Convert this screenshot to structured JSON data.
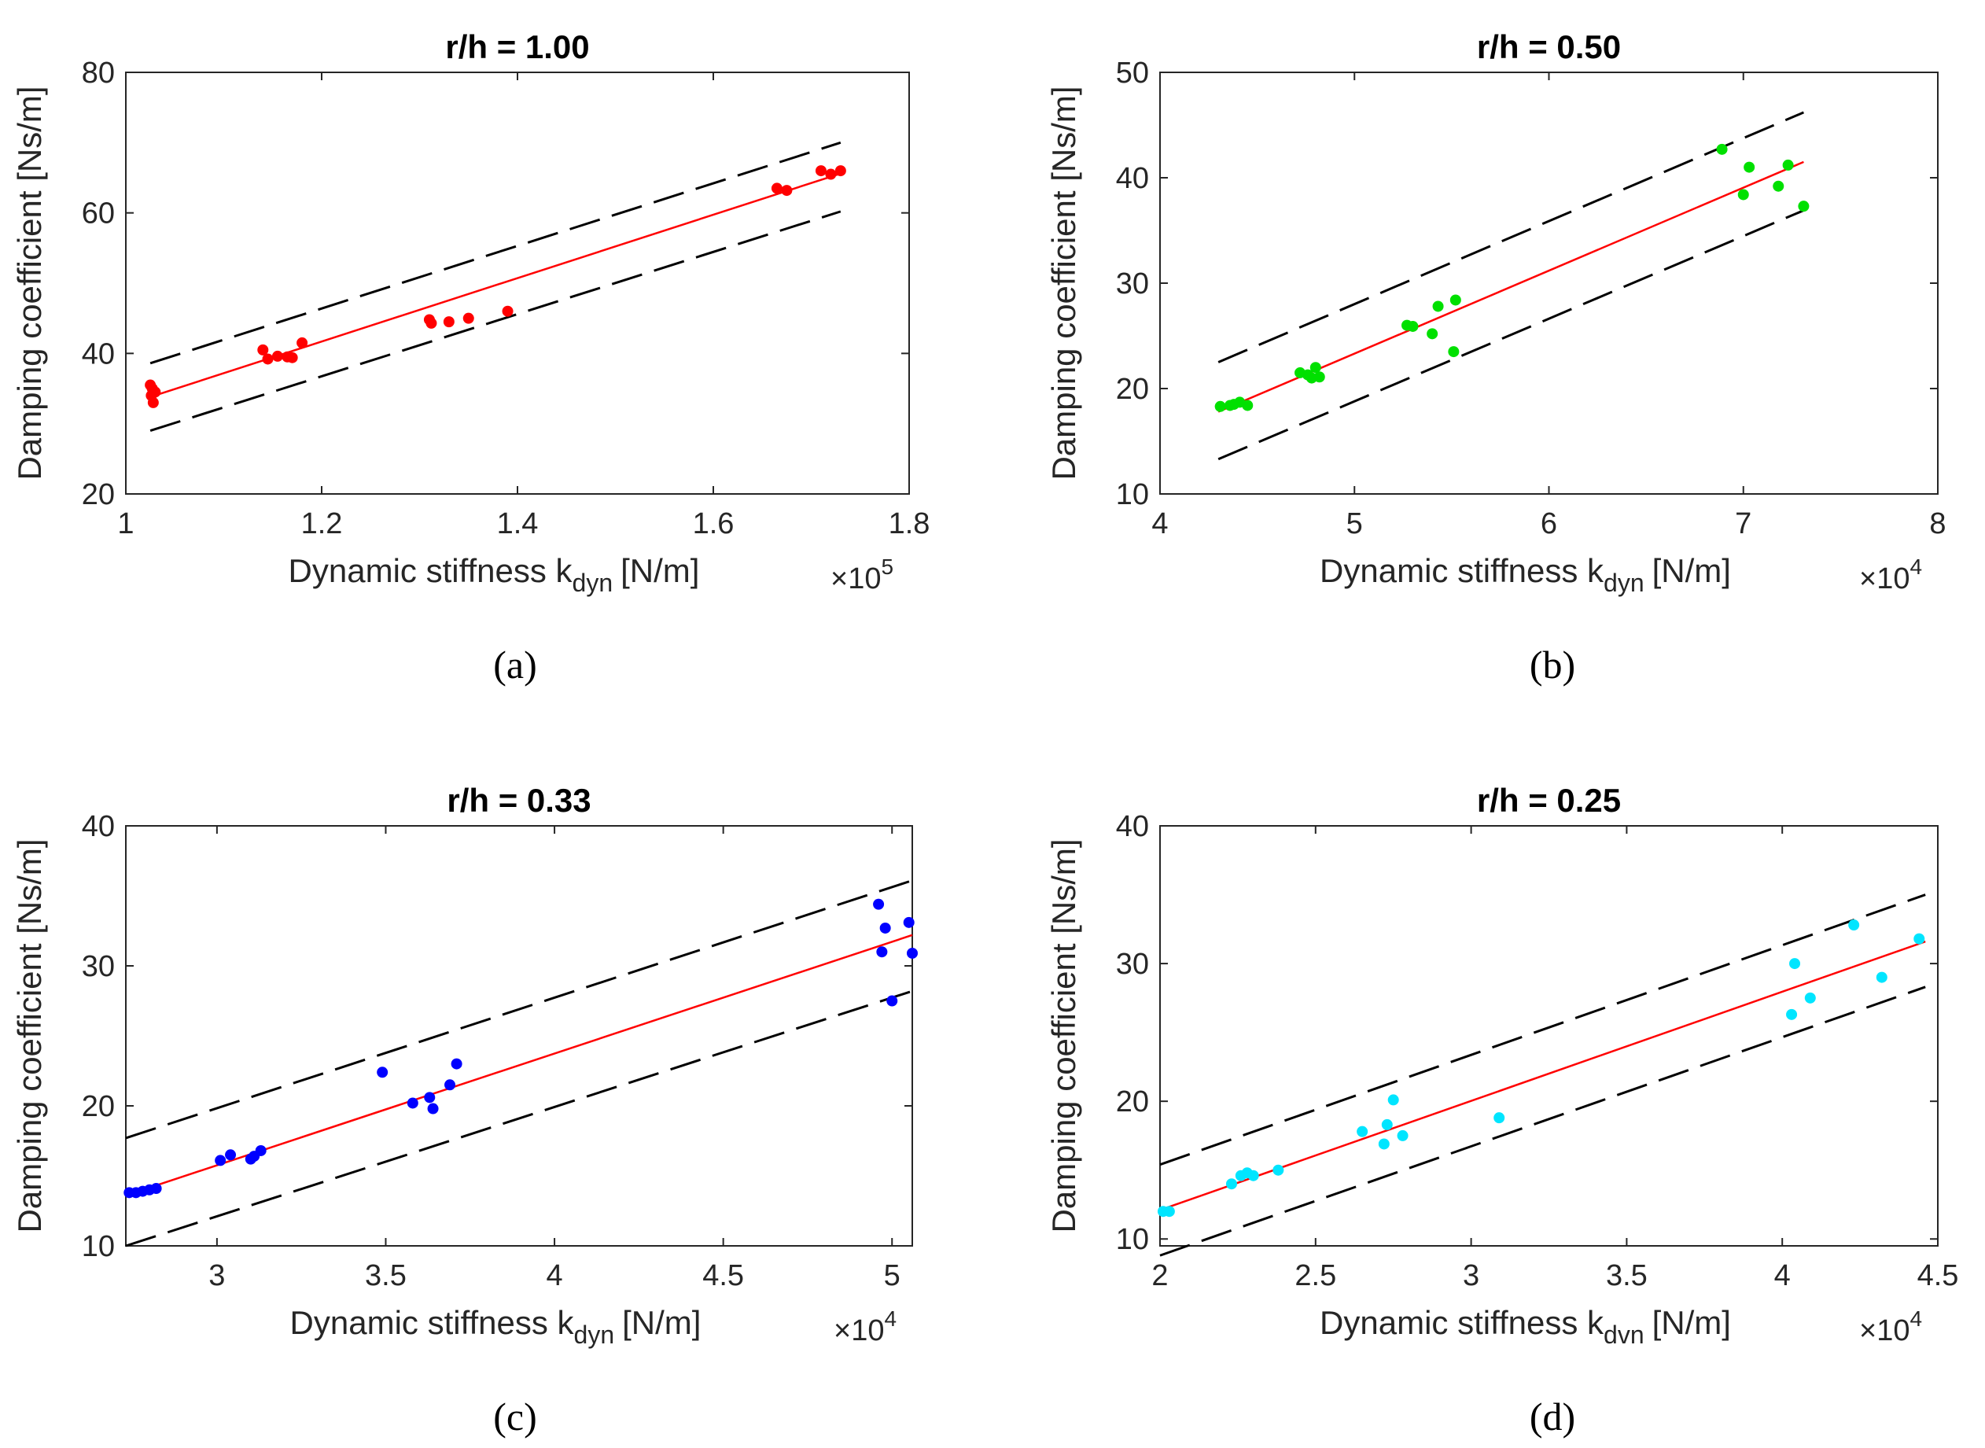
{
  "chart_data": [
    {
      "type": "scatter",
      "panel": "(a)",
      "title": "r/h = 1.00",
      "ylabel": "Damping coefficient [Ns/m]",
      "xlabel_main": "Dynamic stiffness k",
      "xlabel_sub": "dyn",
      "xlabel_unit": "[N/m]",
      "x_multiplier": "×10",
      "x_exponent": "5",
      "xlim": [
        1.0,
        1.8
      ],
      "ylim": [
        20,
        80
      ],
      "xticks": [
        1.0,
        1.2,
        1.4,
        1.6,
        1.8
      ],
      "xtick_labels": [
        "1",
        "1.2",
        "1.4",
        "1.6",
        "1.8"
      ],
      "yticks": [
        20,
        40,
        60,
        80
      ],
      "ytick_labels": [
        "20",
        "40",
        "60",
        "80"
      ],
      "color": "#ff0000",
      "x": [
        1.025,
        1.027,
        1.03,
        1.028,
        1.026,
        1.14,
        1.145,
        1.155,
        1.165,
        1.17,
        1.18,
        1.31,
        1.312,
        1.33,
        1.35,
        1.39,
        1.665,
        1.675,
        1.71,
        1.72,
        1.73
      ],
      "y": [
        35.5,
        35.0,
        34.5,
        33.0,
        34.0,
        40.5,
        39.2,
        39.6,
        39.5,
        39.4,
        41.5,
        44.8,
        44.3,
        44.5,
        45.0,
        46.0,
        63.5,
        63.2,
        66.0,
        65.5,
        66.0
      ],
      "fit": {
        "x": [
          1.025,
          1.73
        ],
        "y": [
          33.8,
          65.6
        ],
        "color": "#ff0000"
      },
      "bounds": [
        {
          "x": [
            1.025,
            1.73
          ],
          "y": [
            38.6,
            70.0
          ]
        },
        {
          "x": [
            1.025,
            1.73
          ],
          "y": [
            29.0,
            60.2
          ]
        }
      ],
      "caption": "(a)"
    },
    {
      "type": "scatter",
      "panel": "(b)",
      "title": "r/h = 0.50",
      "ylabel": "Damping coefficient [Ns/m]",
      "xlabel_main": "Dynamic stiffness k",
      "xlabel_sub": "dyn",
      "xlabel_unit": "[N/m]",
      "x_multiplier": "×10",
      "x_exponent": "4",
      "xlim": [
        4,
        8
      ],
      "ylim": [
        10,
        50
      ],
      "xticks": [
        4,
        5,
        6,
        7,
        8
      ],
      "xtick_labels": [
        "4",
        "5",
        "6",
        "7",
        "8"
      ],
      "yticks": [
        10,
        20,
        30,
        40,
        50
      ],
      "ytick_labels": [
        "10",
        "20",
        "30",
        "40",
        "50"
      ],
      "color": "#00e000",
      "x": [
        4.31,
        4.36,
        4.38,
        4.41,
        4.45,
        4.72,
        4.76,
        4.8,
        4.78,
        4.82,
        5.27,
        5.3,
        5.4,
        5.43,
        5.51,
        5.52,
        6.89,
        7.0,
        7.03,
        7.18,
        7.23,
        7.31
      ],
      "y": [
        18.3,
        18.4,
        18.5,
        18.7,
        18.4,
        21.5,
        21.3,
        22.0,
        21.0,
        21.1,
        26.0,
        25.9,
        25.2,
        27.8,
        23.5,
        28.4,
        42.7,
        38.4,
        41.0,
        39.2,
        41.2,
        37.3
      ],
      "fit": {
        "x": [
          4.3,
          7.31
        ],
        "y": [
          17.8,
          41.5
        ],
        "color": "#ff0000"
      },
      "bounds": [
        {
          "x": [
            4.3,
            7.31
          ],
          "y": [
            22.5,
            46.2
          ]
        },
        {
          "x": [
            4.3,
            7.31
          ],
          "y": [
            13.3,
            36.9
          ]
        }
      ],
      "caption": "(b)"
    },
    {
      "type": "scatter",
      "panel": "(c)",
      "title": "r/h = 0.33",
      "ylabel": "Damping coefficient [Ns/m]",
      "xlabel_main": "Dynamic stiffness k",
      "xlabel_sub": "dyn",
      "xlabel_unit": "[N/m]",
      "x_multiplier": "×10",
      "x_exponent": "4",
      "xlim": [
        2.73,
        5.06
      ],
      "ylim": [
        10,
        40
      ],
      "xticks": [
        3,
        3.5,
        4,
        4.5,
        5
      ],
      "xtick_labels": [
        "3",
        "3.5",
        "4",
        "4.5",
        "5"
      ],
      "yticks": [
        10,
        20,
        30,
        40
      ],
      "ytick_labels": [
        "10",
        "20",
        "30",
        "40"
      ],
      "color": "#0000ff",
      "x": [
        2.74,
        2.76,
        2.78,
        2.8,
        2.82,
        3.01,
        3.04,
        3.1,
        3.11,
        3.13,
        3.49,
        3.58,
        3.63,
        3.64,
        3.69,
        3.71,
        4.96,
        4.97,
        4.98,
        5.0,
        5.05,
        5.06
      ],
      "y": [
        13.8,
        13.8,
        13.9,
        14.0,
        14.1,
        16.1,
        16.5,
        16.2,
        16.4,
        16.8,
        22.4,
        20.2,
        20.6,
        19.8,
        21.5,
        23.0,
        34.4,
        31.0,
        32.7,
        27.5,
        33.1,
        30.9
      ],
      "fit": {
        "x": [
          2.73,
          5.06
        ],
        "y": [
          13.6,
          32.2
        ],
        "color": "#ff0000"
      },
      "bounds": [
        {
          "x": [
            2.73,
            5.06
          ],
          "y": [
            17.7,
            36.1
          ]
        },
        {
          "x": [
            2.73,
            5.06
          ],
          "y": [
            10.0,
            28.2
          ]
        }
      ],
      "caption": "(c)"
    },
    {
      "type": "scatter",
      "panel": "(d)",
      "title": "r/h = 0.25",
      "ylabel": "Damping coefficient [Ns/m]",
      "xlabel_main": "Dynamic stiffness k",
      "xlabel_sub": "dvn",
      "xlabel_unit": "[N/m]",
      "x_multiplier": "×10",
      "x_exponent": "4",
      "xlim": [
        2,
        4.5
      ],
      "ylim": [
        9.5,
        40
      ],
      "xticks": [
        2,
        2.5,
        3,
        3.5,
        4,
        4.5
      ],
      "xtick_labels": [
        "2",
        "2.5",
        "3",
        "3.5",
        "4",
        "4.5"
      ],
      "yticks": [
        10,
        20,
        30,
        40
      ],
      "ytick_labels": [
        "10",
        "20",
        "30",
        "40"
      ],
      "color": "#00e5ff",
      "x": [
        2.01,
        2.03,
        2.23,
        2.26,
        2.28,
        2.3,
        2.38,
        2.65,
        2.72,
        2.73,
        2.75,
        2.78,
        3.09,
        4.03,
        4.04,
        4.09,
        4.23,
        4.32,
        4.44
      ],
      "y": [
        12.0,
        12.0,
        14.0,
        14.6,
        14.8,
        14.6,
        15.0,
        17.8,
        16.9,
        18.3,
        20.1,
        17.5,
        18.8,
        26.3,
        30.0,
        27.5,
        32.8,
        29.0,
        31.8
      ],
      "fit": {
        "x": [
          2.0,
          4.46
        ],
        "y": [
          12.1,
          31.6
        ],
        "color": "#ff0000"
      },
      "bounds": [
        {
          "x": [
            2.0,
            4.46
          ],
          "y": [
            15.4,
            35.0
          ]
        },
        {
          "x": [
            2.0,
            4.46
          ],
          "y": [
            8.8,
            28.3
          ]
        }
      ],
      "caption": "(d)"
    }
  ]
}
